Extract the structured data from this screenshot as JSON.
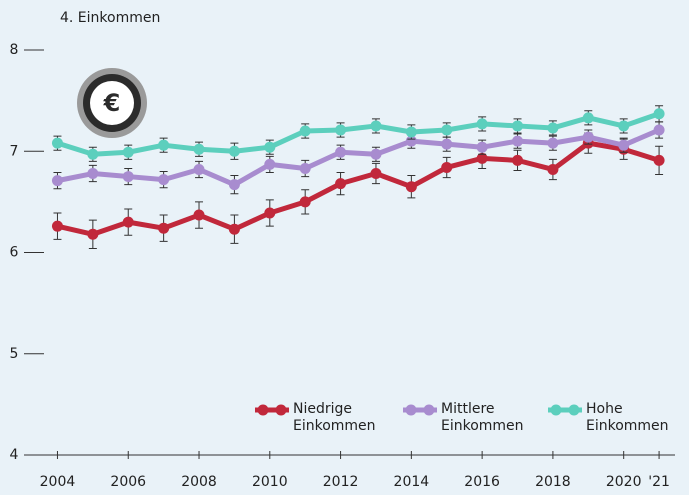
{
  "chart_data": {
    "type": "line",
    "title": "4. Einkommen",
    "x": [
      2004,
      2005,
      2006,
      2007,
      2008,
      2009,
      2010,
      2011,
      2012,
      2013,
      2014,
      2015,
      2016,
      2017,
      2018,
      2019,
      2020,
      2021
    ],
    "series": [
      {
        "name": "Niedrige Einkommen",
        "color": "#c1283b",
        "values": [
          6.26,
          6.18,
          6.3,
          6.24,
          6.37,
          6.23,
          6.39,
          6.5,
          6.68,
          6.78,
          6.65,
          6.84,
          6.93,
          6.91,
          6.82,
          7.08,
          7.02,
          6.91
        ],
        "errors": [
          0.13,
          0.14,
          0.13,
          0.13,
          0.13,
          0.14,
          0.13,
          0.12,
          0.11,
          0.1,
          0.11,
          0.1,
          0.1,
          0.1,
          0.1,
          0.1,
          0.1,
          0.14
        ]
      },
      {
        "name": "Mittlere Einkommen",
        "color": "#a88ccf",
        "values": [
          6.71,
          6.78,
          6.75,
          6.72,
          6.82,
          6.67,
          6.87,
          6.83,
          6.99,
          6.97,
          7.1,
          7.07,
          7.04,
          7.1,
          7.08,
          7.14,
          7.06,
          7.21
        ],
        "errors": [
          0.08,
          0.08,
          0.08,
          0.08,
          0.08,
          0.09,
          0.08,
          0.08,
          0.07,
          0.07,
          0.07,
          0.07,
          0.07,
          0.07,
          0.07,
          0.07,
          0.07,
          0.08
        ]
      },
      {
        "name": "Hohe Einkommen",
        "color": "#5ccfbd",
        "values": [
          7.08,
          6.97,
          6.99,
          7.06,
          7.02,
          7.0,
          7.04,
          7.2,
          7.21,
          7.25,
          7.19,
          7.21,
          7.27,
          7.25,
          7.23,
          7.33,
          7.25,
          7.37
        ],
        "errors": [
          0.07,
          0.07,
          0.07,
          0.07,
          0.07,
          0.08,
          0.07,
          0.07,
          0.07,
          0.07,
          0.07,
          0.07,
          0.07,
          0.07,
          0.07,
          0.07,
          0.07,
          0.08
        ]
      }
    ],
    "xlim": [
      2003.45,
      2021.45
    ],
    "xticks": [
      2004,
      2006,
      2008,
      2010,
      2012,
      2014,
      2016,
      2018,
      2020,
      {
        "value": 2021,
        "label": "'21"
      }
    ],
    "ylim": [
      4,
      8
    ],
    "yticks": [
      4,
      5,
      6,
      7,
      8
    ],
    "legend": "bottom-right"
  }
}
